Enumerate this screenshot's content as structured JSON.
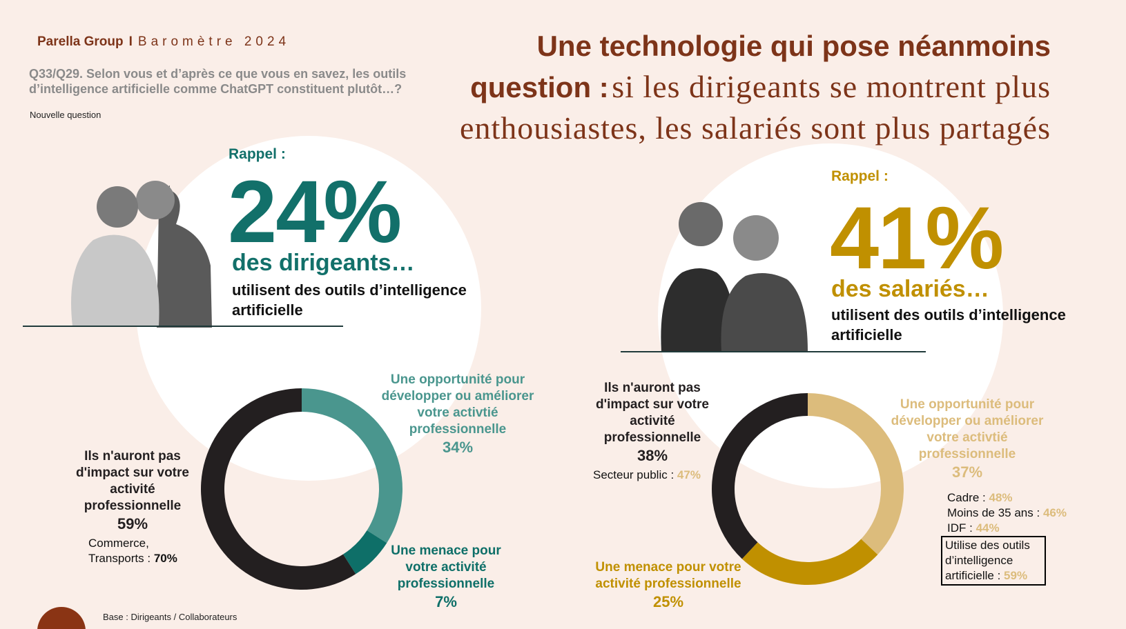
{
  "header": {
    "brand": "Parella Group",
    "separator": "I",
    "title": "Baromètre 2024"
  },
  "question": "Q33/Q29. Selon vous et d’après ce que vous en savez, les outils d’intelligence artificielle comme ChatGPT constituent plutôt…?",
  "note": "Nouvelle question",
  "title": {
    "bold": "Une technologie qui pose néanmoins question :",
    "light": "si les dirigeants se montrent plus enthousiastes, les salariés sont plus partagés"
  },
  "base": "Base : Dirigeants / Collaborateurs",
  "chart_data": [
    {
      "type": "donut",
      "rappel": "Rappel :",
      "headline": "24%",
      "subject": "des dirigeants…",
      "description": "utilisent des outils d’intelligence artificielle",
      "accent_color": "#12706a",
      "categories": [
        "Une opportunité pour développer ou améliorer votre activtié professionnelle",
        "Une menace pour votre activité professionnelle",
        "Ils n'auront pas d'impact sur votre activité professionnelle"
      ],
      "values": [
        34,
        7,
        59
      ],
      "value_labels": [
        "34%",
        "7%",
        "59%"
      ],
      "colors": [
        "#4a968e",
        "#0e6f68",
        "#231f20"
      ],
      "annotations": [
        {
          "text": "Commerce, Transports :",
          "value": "70%"
        }
      ]
    },
    {
      "type": "donut",
      "rappel": "Rappel :",
      "headline": "41%",
      "subject": "des salariés…",
      "description": "utilisent des outils d’intelligence artificielle",
      "accent_color": "#c09000",
      "categories": [
        "Une opportunité pour développer ou améliorer votre activtié professionnelle",
        "Une menace pour votre activité professionnelle",
        "Ils n'auront pas d'impact sur votre activité professionnelle"
      ],
      "values": [
        37,
        25,
        38
      ],
      "value_labels": [
        "37%",
        "25%",
        "38%"
      ],
      "colors": [
        "#dcbc7c",
        "#c09000",
        "#231f20"
      ],
      "annotations": [
        {
          "text": "Secteur public :",
          "value": "47%"
        },
        {
          "text": "Cadre :",
          "value": "48%"
        },
        {
          "text": "Moins de 35 ans :",
          "value": "46%"
        },
        {
          "text": "IDF :",
          "value": "44%"
        },
        {
          "text": "Utilise des outils d’intelligence artificielle :",
          "value": "59%"
        }
      ]
    }
  ]
}
